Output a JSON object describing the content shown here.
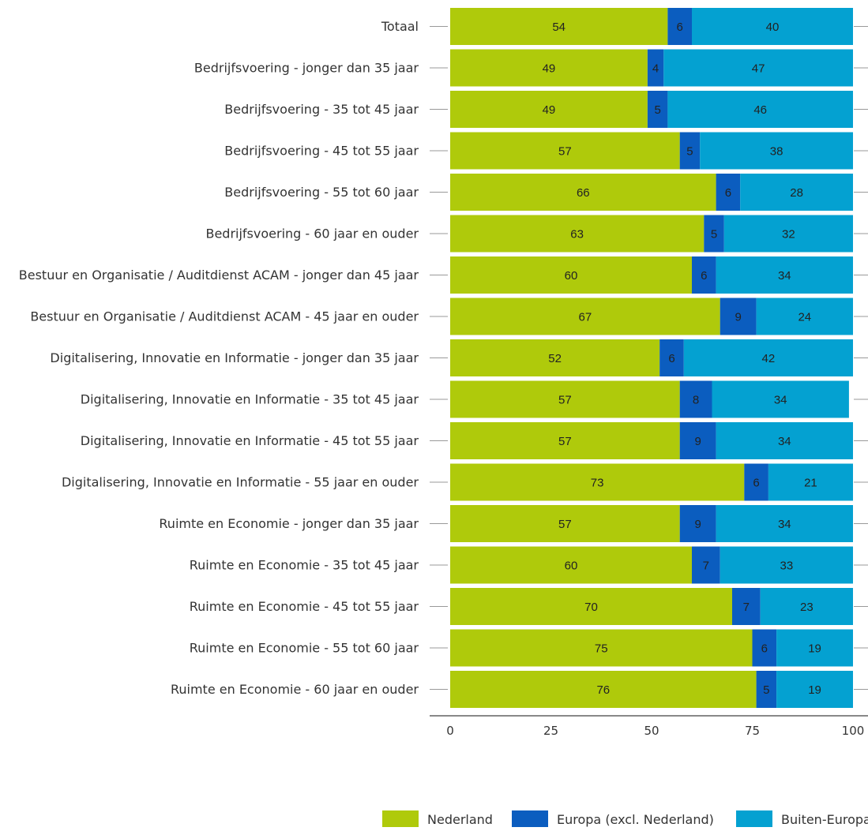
{
  "chart_data": {
    "type": "bar",
    "orientation": "horizontal",
    "stacked": true,
    "categories": [
      "Totaal",
      "Bedrijfsvoering - jonger dan 35 jaar",
      "Bedrijfsvoering - 35 tot 45 jaar",
      "Bedrijfsvoering - 45 tot 55 jaar",
      "Bedrijfsvoering - 55 tot 60 jaar",
      "Bedrijfsvoering - 60 jaar en ouder",
      "Bestuur en Organisatie / Auditdienst ACAM - jonger dan 45 jaar",
      "Bestuur en Organisatie / Auditdienst ACAM - 45 jaar en ouder",
      "Digitalisering, Innovatie en Informatie - jonger dan 35 jaar",
      "Digitalisering, Innovatie en Informatie - 35 tot 45 jaar",
      "Digitalisering, Innovatie en Informatie - 45 tot 55 jaar",
      "Digitalisering, Innovatie en Informatie - 55 jaar en ouder",
      "Ruimte en Economie - jonger dan 35 jaar",
      "Ruimte en Economie - 35 tot 45 jaar",
      "Ruimte en Economie - 45 tot 55 jaar",
      "Ruimte en Economie - 55 tot 60 jaar",
      "Ruimte en Economie - 60 jaar en ouder"
    ],
    "series": [
      {
        "name": "Nederland",
        "color": "#afca0b",
        "values": [
          54,
          49,
          49,
          57,
          66,
          63,
          60,
          67,
          52,
          57,
          57,
          73,
          57,
          60,
          70,
          75,
          76
        ]
      },
      {
        "name": "Europa (excl. Nederland)",
        "color": "#0b5dbf",
        "values": [
          6,
          4,
          5,
          5,
          6,
          5,
          6,
          9,
          6,
          8,
          9,
          6,
          9,
          7,
          7,
          6,
          5
        ]
      },
      {
        "name": "Buiten-Europa",
        "color": "#04a1d1",
        "values": [
          40,
          47,
          46,
          38,
          28,
          32,
          34,
          24,
          42,
          34,
          34,
          21,
          34,
          33,
          23,
          19,
          19
        ]
      }
    ],
    "xlim": [
      0,
      100
    ],
    "xticks": [
      "0",
      "25",
      "50",
      "75",
      "100"
    ],
    "legend_position": "bottom",
    "grid": false
  }
}
